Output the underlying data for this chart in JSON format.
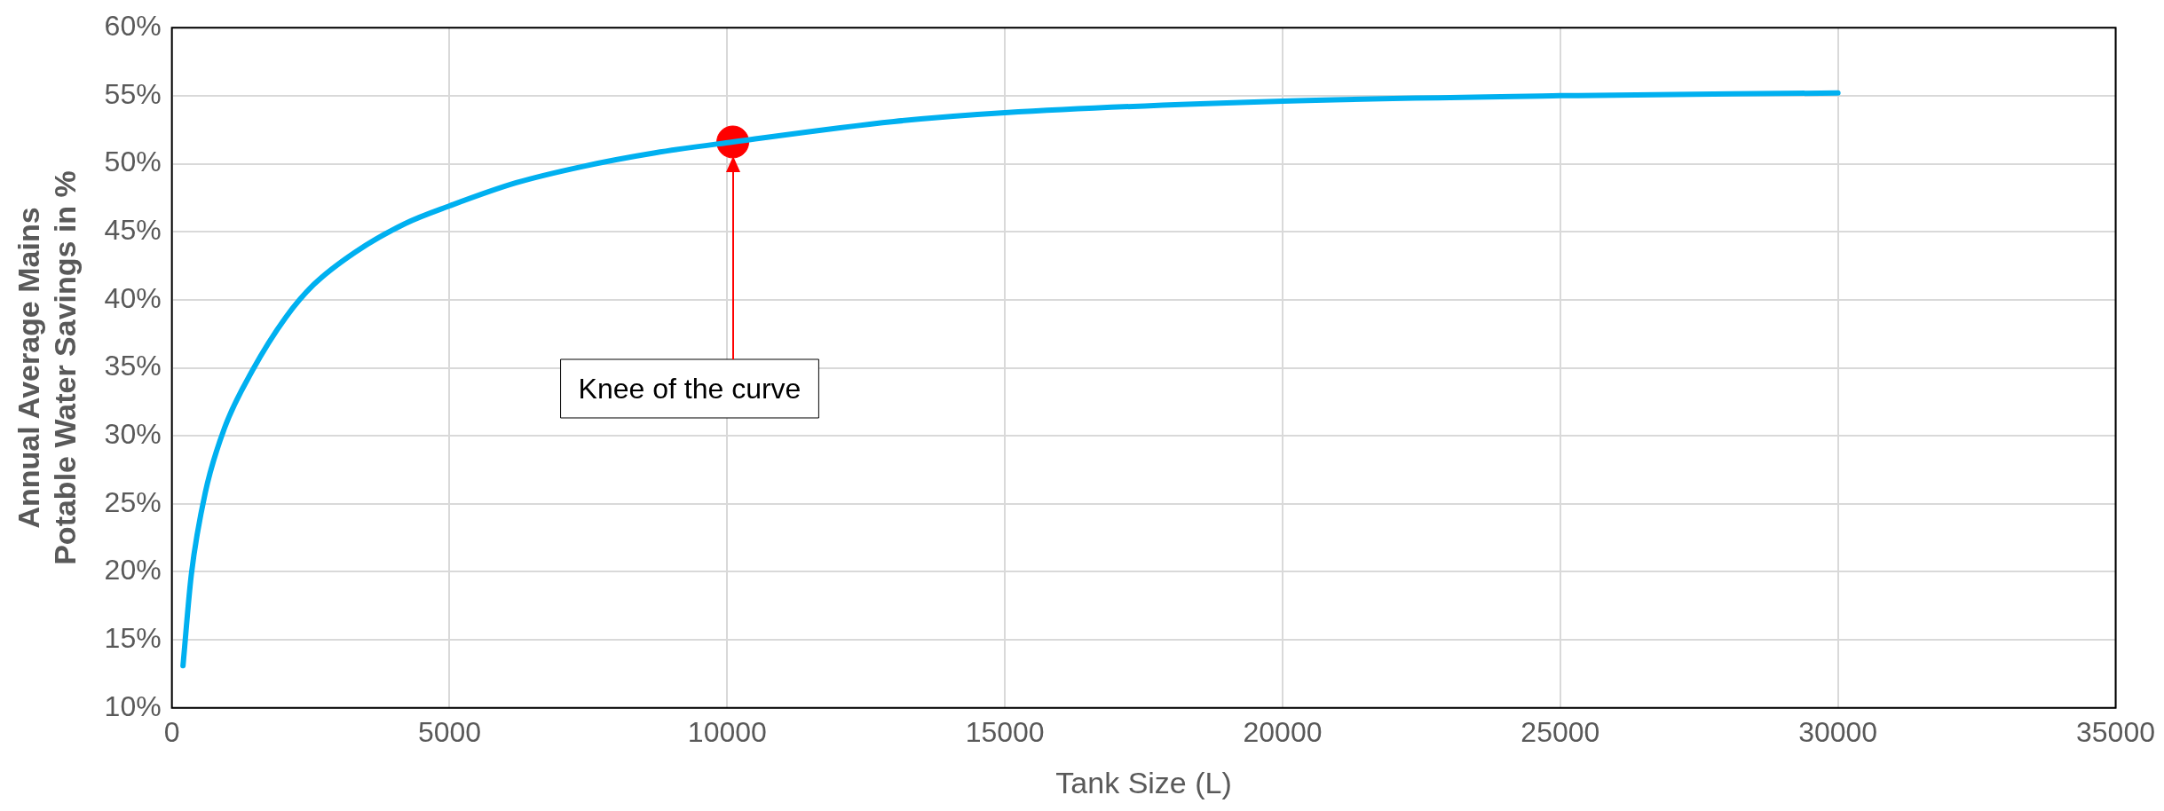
{
  "chart_data": {
    "type": "line",
    "xlabel": "Tank Size (L)",
    "ylabel": "Annual Average Mains Potable Water Savings in %",
    "xlim": [
      0,
      35000
    ],
    "xticks": [
      0,
      5000,
      10000,
      15000,
      20000,
      25000,
      30000,
      35000
    ],
    "ylim": [
      10,
      60
    ],
    "yticks": [
      {
        "value": 10,
        "label": "10%"
      },
      {
        "value": 15,
        "label": "15%"
      },
      {
        "value": 20,
        "label": "20%"
      },
      {
        "value": 25,
        "label": "25%"
      },
      {
        "value": 30,
        "label": "30%"
      },
      {
        "value": 35,
        "label": "35%"
      },
      {
        "value": 40,
        "label": "40%"
      },
      {
        "value": 45,
        "label": "45%"
      },
      {
        "value": 50,
        "label": "50%"
      },
      {
        "value": 55,
        "label": "55%"
      },
      {
        "value": 60,
        "label": "60%"
      }
    ],
    "grid": true,
    "legend": false,
    "marker": "none",
    "series": [
      {
        "color": "#00b0f0",
        "x": [
          200,
          350,
          600,
          950,
          1450,
          2050,
          2550,
          3300,
          4200,
          5000,
          6200,
          7400,
          8700,
          10100,
          13000,
          15000,
          20000,
          25000,
          30000
        ],
        "values": [
          13.1,
          19.8,
          25.8,
          30.6,
          34.8,
          38.7,
          41.1,
          43.5,
          45.6,
          46.9,
          48.6,
          49.8,
          50.8,
          51.6,
          53.1,
          53.75,
          54.6,
          55.0,
          55.2
        ]
      },
      {
        "type": "scatter",
        "color": "#ff0000",
        "marker": "circle",
        "x": [
          10100
        ],
        "values": [
          51.6
        ]
      }
    ],
    "annotations": [
      "Knee of the curve"
    ]
  }
}
